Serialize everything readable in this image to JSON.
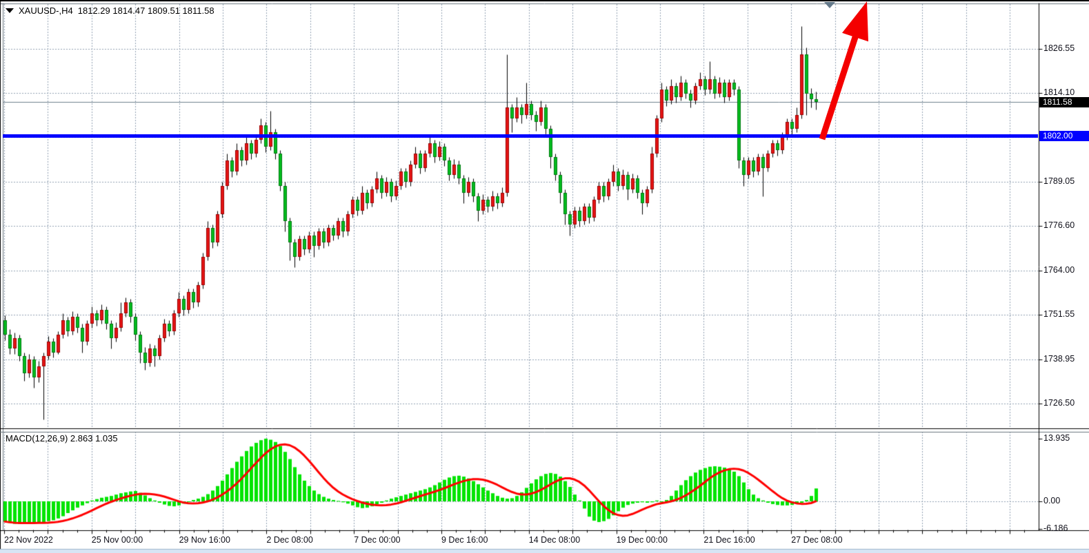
{
  "window": {
    "title_symbol": "XAUUSD-,H4",
    "title_ohlc": "1812.29 1814.47 1809.51 1811.58"
  },
  "price_axis": {
    "current_label": "1811.58",
    "hline_label": "1802.00"
  },
  "time_axis": {
    "labels": [
      "22 Nov 2022",
      "25 Nov 00:00",
      "29 Nov 16:00",
      "2 Dec 08:00",
      "7 Dec 00:00",
      "9 Dec 16:00",
      "14 Dec 08:00",
      "19 Dec 00:00",
      "21 Dec 16:00",
      "27 Dec 08:00"
    ]
  },
  "macd_panel": {
    "label": "MACD(12,26,9) 2.863 1.035",
    "levels": [
      {
        "value": 13.935,
        "label": "13.935"
      },
      {
        "value": 0,
        "label": "0.00"
      },
      {
        "value": -6.186,
        "label": "-6.186"
      }
    ]
  },
  "colors": {
    "bull": "#e51414",
    "bear": "#00bd1e",
    "bull_edge": "#9c0000",
    "bear_edge": "#007a10",
    "wick": "#000000",
    "macd_hist": "#00e400",
    "macd_signal": "#ff0000",
    "hline": "#0000ff",
    "grid": "#8fa0b1",
    "current_line": "#6d7f8d",
    "box_current_bg": "#000000",
    "box_hline_bg": "#0000ff",
    "arrow": "#f40000",
    "marker": "#64798a",
    "bottom_strip": "#d7e5f5",
    "frame": "#000000"
  },
  "chart_data": {
    "type": "candlestick",
    "symbol": "XAUUSD",
    "timeframe": "H4",
    "title": "XAUUSD-,H4  1812.29 1814.47 1809.51 1811.58",
    "color_convention": "red=bullish, green=bearish",
    "ohlc_current": {
      "open": 1812.29,
      "high": 1814.47,
      "low": 1809.51,
      "close": 1811.58
    },
    "y_axis": {
      "ticks": [
        1826.55,
        1814.1,
        1789.05,
        1776.6,
        1764.0,
        1751.55,
        1738.95,
        1726.5
      ],
      "unlabeled_grid": 1801.6,
      "current_price": 1811.58,
      "hline_price": 1802.0
    },
    "x_axis": {
      "tick_labels": [
        "22 Nov 2022",
        "25 Nov 00:00",
        "29 Nov 16:00",
        "2 Dec 08:00",
        "7 Dec 00:00",
        "9 Dec 16:00",
        "14 Dec 08:00",
        "19 Dec 00:00",
        "21 Dec 16:00",
        "27 Dec 08:00"
      ]
    },
    "candles": [
      [
        1750,
        1751.5,
        1744.5,
        1746
      ],
      [
        1746,
        1747.5,
        1740.5,
        1742
      ],
      [
        1742,
        1746.5,
        1740.5,
        1745
      ],
      [
        1745,
        1746,
        1738.5,
        1740
      ],
      [
        1740,
        1741,
        1733,
        1735
      ],
      [
        1735,
        1740.5,
        1734,
        1739
      ],
      [
        1739,
        1740,
        1731,
        1734
      ],
      [
        1734,
        1738.5,
        1732.5,
        1737
      ],
      [
        1737,
        1741,
        1722,
        1740
      ],
      [
        1740,
        1745.5,
        1739,
        1744
      ],
      [
        1744,
        1745,
        1739.5,
        1741
      ],
      [
        1741,
        1747,
        1740.5,
        1746
      ],
      [
        1746,
        1752,
        1745,
        1750
      ],
      [
        1750,
        1751,
        1745.5,
        1747
      ],
      [
        1747,
        1752.5,
        1746,
        1751
      ],
      [
        1751,
        1752,
        1746.5,
        1748
      ],
      [
        1748,
        1749,
        1741,
        1744
      ],
      [
        1744,
        1750,
        1743,
        1749
      ],
      [
        1749,
        1754,
        1748,
        1752
      ],
      [
        1752,
        1753,
        1748.5,
        1750
      ],
      [
        1750,
        1754.5,
        1749,
        1753
      ],
      [
        1753,
        1754,
        1747.5,
        1749
      ],
      [
        1749,
        1750,
        1742,
        1745
      ],
      [
        1745,
        1749.5,
        1744,
        1748
      ],
      [
        1748,
        1755,
        1747,
        1752
      ],
      [
        1752,
        1756.5,
        1751,
        1755
      ],
      [
        1755,
        1756,
        1749.5,
        1751
      ],
      [
        1751,
        1752,
        1744.5,
        1746
      ],
      [
        1746,
        1747,
        1738,
        1741
      ],
      [
        1741,
        1742.5,
        1736,
        1738
      ],
      [
        1738,
        1743.5,
        1737,
        1742
      ],
      [
        1742,
        1743,
        1737,
        1740
      ],
      [
        1740,
        1746,
        1739,
        1745
      ],
      [
        1745,
        1750.5,
        1744,
        1749
      ],
      [
        1749,
        1750,
        1745.5,
        1747
      ],
      [
        1747,
        1753,
        1746,
        1752
      ],
      [
        1752,
        1758,
        1751,
        1756
      ],
      [
        1756,
        1757,
        1751.5,
        1753
      ],
      [
        1753,
        1759,
        1752,
        1758
      ],
      [
        1758,
        1759,
        1753.5,
        1755
      ],
      [
        1755,
        1761,
        1754,
        1760
      ],
      [
        1760,
        1769,
        1759,
        1768
      ],
      [
        1768,
        1778,
        1767,
        1776
      ],
      [
        1776,
        1777,
        1770.5,
        1772
      ],
      [
        1772,
        1781,
        1771,
        1780
      ],
      [
        1780,
        1789,
        1779,
        1788
      ],
      [
        1788,
        1797,
        1787,
        1795
      ],
      [
        1795,
        1796,
        1790.5,
        1792
      ],
      [
        1792,
        1800,
        1791,
        1798
      ],
      [
        1798,
        1799,
        1793.5,
        1795
      ],
      [
        1795,
        1802,
        1794,
        1800
      ],
      [
        1800,
        1801,
        1795.5,
        1797
      ],
      [
        1797,
        1802.5,
        1796,
        1801
      ],
      [
        1801,
        1807,
        1800,
        1805
      ],
      [
        1805,
        1806,
        1797.5,
        1799
      ],
      [
        1799,
        1809,
        1798,
        1803
      ],
      [
        1803,
        1804,
        1795.5,
        1797
      ],
      [
        1797,
        1798,
        1786.5,
        1788
      ],
      [
        1788,
        1789,
        1775,
        1778
      ],
      [
        1778,
        1779,
        1767,
        1772
      ],
      [
        1772,
        1773,
        1765,
        1768
      ],
      [
        1768,
        1774,
        1767,
        1773
      ],
      [
        1773,
        1774,
        1768.5,
        1770
      ],
      [
        1770,
        1775,
        1769,
        1774
      ],
      [
        1774,
        1775,
        1768,
        1771
      ],
      [
        1771,
        1776,
        1770,
        1775
      ],
      [
        1775,
        1776,
        1770.5,
        1772
      ],
      [
        1772,
        1777,
        1771,
        1776
      ],
      [
        1776,
        1777,
        1772.5,
        1774
      ],
      [
        1774,
        1779,
        1773,
        1778
      ],
      [
        1778,
        1779,
        1773.5,
        1775
      ],
      [
        1775,
        1781,
        1774,
        1780
      ],
      [
        1780,
        1785,
        1779,
        1784
      ],
      [
        1784,
        1785,
        1779.5,
        1781
      ],
      [
        1781,
        1788,
        1780,
        1786
      ],
      [
        1786,
        1787,
        1781.5,
        1783
      ],
      [
        1783,
        1788,
        1782,
        1787
      ],
      [
        1787,
        1792,
        1786,
        1790
      ],
      [
        1790,
        1791,
        1784.5,
        1786
      ],
      [
        1786,
        1790.5,
        1785,
        1789
      ],
      [
        1789,
        1790,
        1783.5,
        1785
      ],
      [
        1785,
        1789.5,
        1784,
        1788
      ],
      [
        1788,
        1793,
        1787,
        1792
      ],
      [
        1792,
        1793,
        1787.5,
        1789
      ],
      [
        1789,
        1795,
        1788,
        1794
      ],
      [
        1794,
        1799,
        1793,
        1797
      ],
      [
        1797,
        1798,
        1791.5,
        1793
      ],
      [
        1793,
        1798,
        1792,
        1797
      ],
      [
        1797,
        1802,
        1796,
        1800
      ],
      [
        1800,
        1801,
        1794.5,
        1796
      ],
      [
        1796,
        1800.5,
        1795,
        1799
      ],
      [
        1799,
        1800,
        1793.5,
        1795
      ],
      [
        1795,
        1796,
        1789.5,
        1791
      ],
      [
        1791,
        1795.5,
        1790,
        1794
      ],
      [
        1794,
        1795,
        1788.5,
        1790
      ],
      [
        1790,
        1791,
        1783,
        1786
      ],
      [
        1786,
        1790.5,
        1785,
        1789
      ],
      [
        1789,
        1790,
        1783.5,
        1785
      ],
      [
        1785,
        1786,
        1778,
        1781
      ],
      [
        1781,
        1785.5,
        1780,
        1784
      ],
      [
        1784,
        1785,
        1780.5,
        1782
      ],
      [
        1782,
        1786.5,
        1781,
        1785
      ],
      [
        1785,
        1786,
        1781.5,
        1783
      ],
      [
        1783,
        1787.5,
        1782,
        1786
      ],
      [
        1786,
        1825,
        1785,
        1810
      ],
      [
        1810,
        1811,
        1803,
        1807
      ],
      [
        1807,
        1813,
        1806,
        1810
      ],
      [
        1810,
        1811,
        1805.5,
        1808
      ],
      [
        1808,
        1817,
        1807,
        1811
      ],
      [
        1811,
        1812,
        1806.5,
        1808
      ],
      [
        1808,
        1809,
        1803.5,
        1806
      ],
      [
        1806,
        1812,
        1805,
        1810
      ],
      [
        1810,
        1811,
        1802.5,
        1804
      ],
      [
        1804,
        1805,
        1793,
        1796
      ],
      [
        1796,
        1797,
        1789.5,
        1791
      ],
      [
        1791,
        1792,
        1783,
        1786
      ],
      [
        1786,
        1787,
        1777,
        1780
      ],
      [
        1780,
        1781,
        1774,
        1777
      ],
      [
        1777,
        1782,
        1776,
        1781
      ],
      [
        1781,
        1782,
        1776.5,
        1778
      ],
      [
        1778,
        1783,
        1777,
        1782
      ],
      [
        1782,
        1783,
        1777.5,
        1779
      ],
      [
        1779,
        1785,
        1778,
        1784
      ],
      [
        1784,
        1789,
        1783,
        1788
      ],
      [
        1788,
        1789,
        1783.5,
        1785
      ],
      [
        1785,
        1790,
        1784,
        1789
      ],
      [
        1789,
        1794,
        1788,
        1792
      ],
      [
        1792,
        1793,
        1786.5,
        1788
      ],
      [
        1788,
        1792.5,
        1787,
        1791
      ],
      [
        1791,
        1792,
        1784,
        1787
      ],
      [
        1787,
        1791.5,
        1786,
        1790
      ],
      [
        1790,
        1791,
        1784.5,
        1786
      ],
      [
        1786,
        1787,
        1780,
        1783
      ],
      [
        1783,
        1788,
        1782,
        1787
      ],
      [
        1787,
        1799,
        1786,
        1797
      ],
      [
        1797,
        1808,
        1796,
        1807
      ],
      [
        1807,
        1817,
        1806,
        1815
      ],
      [
        1815,
        1816,
        1810.5,
        1812
      ],
      [
        1812,
        1818,
        1811,
        1816
      ],
      [
        1816,
        1817,
        1811.5,
        1813
      ],
      [
        1813,
        1819,
        1812,
        1817
      ],
      [
        1817,
        1818,
        1812.5,
        1814
      ],
      [
        1814,
        1815,
        1810,
        1812
      ],
      [
        1812,
        1817,
        1811,
        1816
      ],
      [
        1816,
        1820,
        1815,
        1818
      ],
      [
        1818,
        1819,
        1813.5,
        1815
      ],
      [
        1815,
        1823,
        1814,
        1818
      ],
      [
        1818,
        1819,
        1812.5,
        1814
      ],
      [
        1814,
        1818.5,
        1813,
        1817
      ],
      [
        1817,
        1818,
        1811.5,
        1813
      ],
      [
        1813,
        1818,
        1812,
        1817
      ],
      [
        1817,
        1818,
        1813.5,
        1815
      ],
      [
        1815,
        1816,
        1793,
        1795
      ],
      [
        1795,
        1796,
        1788,
        1791
      ],
      [
        1791,
        1796,
        1790,
        1795
      ],
      [
        1795,
        1796,
        1790.5,
        1792
      ],
      [
        1792,
        1797,
        1791,
        1796
      ],
      [
        1796,
        1797,
        1785,
        1793
      ],
      [
        1793,
        1798,
        1792,
        1797
      ],
      [
        1797,
        1801,
        1796,
        1800
      ],
      [
        1800,
        1801,
        1796.5,
        1798
      ],
      [
        1798,
        1803,
        1797,
        1802
      ],
      [
        1802,
        1807,
        1801,
        1806
      ],
      [
        1806,
        1807,
        1802.5,
        1804
      ],
      [
        1804,
        1810,
        1803,
        1808
      ],
      [
        1808,
        1833,
        1807,
        1825
      ],
      [
        1825,
        1827,
        1808,
        1814
      ],
      [
        1814,
        1815.5,
        1810,
        1812.3
      ],
      [
        1812.29,
        1814.47,
        1809.51,
        1811.58
      ]
    ],
    "indicator": {
      "type": "MACD",
      "params": [
        12,
        26,
        9
      ],
      "current_macd": 2.863,
      "current_signal": 1.035,
      "scale_max": 13.935,
      "scale_min": -6.186,
      "histogram": [
        -4.5,
        -4.8,
        -5,
        -5,
        -4.9,
        -4.8,
        -4.7,
        -4.6,
        -4.6,
        -4.4,
        -4.2,
        -3.8,
        -3.3,
        -2.6,
        -2,
        -1.4,
        -0.9,
        -0.4,
        0.2,
        0.5,
        0.8,
        1,
        1.2,
        1.5,
        1.8,
        2,
        2.2,
        2.3,
        1.9,
        1.3,
        0.7,
        0.2,
        -0.3,
        -0.7,
        -1,
        -1.1,
        -0.9,
        -0.5,
        -0.1,
        0.3,
        0.6,
        1,
        1.6,
        2.4,
        3.4,
        4.6,
        6,
        7.4,
        8.8,
        10,
        11.2,
        12.2,
        13,
        13.6,
        13.935,
        13.7,
        13.2,
        12.3,
        11,
        9.4,
        7.6,
        6,
        4.6,
        3.4,
        2.4,
        1.6,
        1,
        0.6,
        0.3,
        0.1,
        -0.2,
        -0.5,
        -0.9,
        -1.3,
        -1.5,
        -1.4,
        -1.1,
        -0.7,
        -0.3,
        0.2,
        0.6,
        0.9,
        1.2,
        1.5,
        1.8,
        2.1,
        2.4,
        2.7,
        3.1,
        3.6,
        4.2,
        4.8,
        5.3,
        5.6,
        5.7,
        5.5,
        5.1,
        4.5,
        3.8,
        3.1,
        2.4,
        1.8,
        1.2,
        0.8,
        0.6,
        0.7,
        1.2,
        2,
        3,
        4,
        4.9,
        5.6,
        6.1,
        6.3,
        6.1,
        5.5,
        4.5,
        3.2,
        1.5,
        0.2,
        -1.6,
        -3.4,
        -4.3,
        -4.6,
        -4.4,
        -3.9,
        -3.1,
        -2.2,
        -1.4,
        -0.8,
        -0.5,
        -0.3,
        -0.2,
        -0.3,
        -0.2,
        0.2,
        -0.2,
        0.3,
        1.2,
        2.4,
        3.6,
        4.7,
        5.6,
        6.4,
        7,
        7.4,
        7.7,
        7.8,
        7.7,
        7.5,
        7.2,
        6.6,
        5.6,
        4.2,
        2.7,
        1.5,
        0.7,
        0.2,
        -0.3,
        -0.6,
        -0.8,
        -0.9,
        -0.9,
        -0.8,
        -0.6,
        -0.3,
        0.3,
        1.2,
        2.863
      ]
    },
    "annotations": [
      {
        "type": "hline",
        "price": 1802.0,
        "color": "#0000ff"
      },
      {
        "type": "arrow",
        "direction": "up",
        "color": "#ff0000"
      }
    ]
  }
}
